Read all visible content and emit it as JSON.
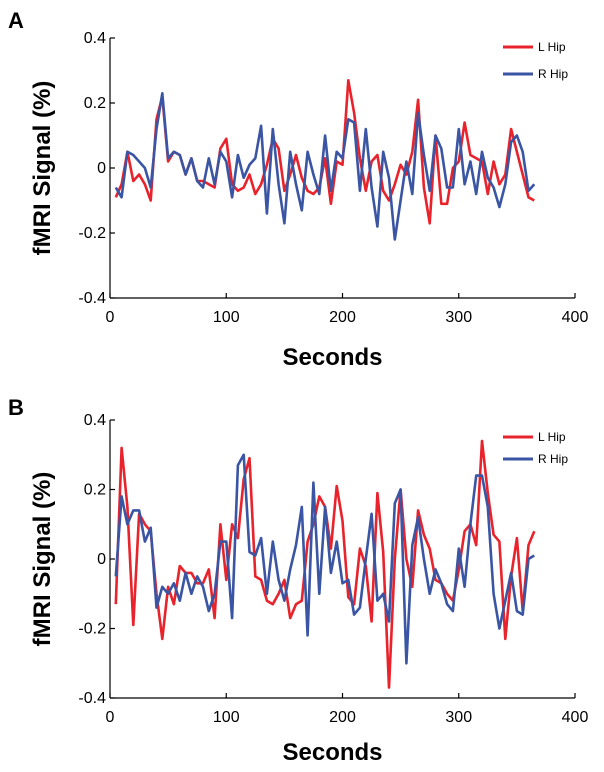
{
  "chart_data": [
    {
      "type": "line",
      "panel": "A",
      "xlabel": "Seconds",
      "ylabel": "fMRI Signal (%)",
      "xlim": [
        0,
        400
      ],
      "ylim": [
        -0.4,
        0.4
      ],
      "xticks": [
        0,
        100,
        200,
        300,
        400
      ],
      "yticks": [
        -0.4,
        -0.2,
        0,
        0.2,
        0.4
      ],
      "ytick_labels": [
        "-0.4",
        "-0.2",
        "0",
        "0.2",
        "0.4"
      ],
      "grid": false,
      "legend": "top-right",
      "series": [
        {
          "name": "L Hip",
          "color": "#e8232b",
          "x": [
            5,
            10,
            15,
            20,
            25,
            30,
            35,
            40,
            45,
            50,
            55,
            60,
            65,
            70,
            75,
            80,
            85,
            90,
            95,
            100,
            105,
            110,
            115,
            120,
            125,
            130,
            135,
            140,
            145,
            150,
            155,
            160,
            165,
            170,
            175,
            180,
            185,
            190,
            195,
            200,
            205,
            210,
            215,
            220,
            225,
            230,
            235,
            240,
            245,
            250,
            255,
            260,
            265,
            270,
            275,
            280,
            285,
            290,
            295,
            300,
            305,
            310,
            315,
            320,
            325,
            330,
            335,
            340,
            345,
            350,
            355,
            360,
            365
          ],
          "y": [
            -0.09,
            -0.05,
            0.05,
            -0.04,
            -0.02,
            -0.05,
            -0.1,
            0.15,
            0.22,
            0.02,
            0.05,
            0.04,
            -0.02,
            0.03,
            -0.04,
            -0.04,
            -0.05,
            -0.06,
            0.06,
            0.09,
            -0.05,
            -0.07,
            -0.06,
            -0.02,
            -0.08,
            -0.05,
            0.01,
            0.09,
            0.06,
            -0.07,
            -0.02,
            0.04,
            -0.03,
            -0.07,
            -0.08,
            -0.06,
            0.03,
            -0.11,
            0.02,
            0.01,
            0.27,
            0.17,
            0.03,
            -0.07,
            0.02,
            0.04,
            -0.07,
            -0.1,
            -0.05,
            0.01,
            -0.02,
            0.05,
            0.21,
            -0.06,
            -0.17,
            0.1,
            -0.11,
            -0.11,
            0.0,
            0.02,
            0.14,
            0.04,
            0.03,
            0.02,
            -0.08,
            0.02,
            -0.05,
            -0.02,
            0.12,
            0.05,
            -0.02,
            -0.09,
            -0.1
          ]
        },
        {
          "name": "R Hip",
          "color": "#3a55a4",
          "x": [
            5,
            10,
            15,
            20,
            25,
            30,
            35,
            40,
            45,
            50,
            55,
            60,
            65,
            70,
            75,
            80,
            85,
            90,
            95,
            100,
            105,
            110,
            115,
            120,
            125,
            130,
            135,
            140,
            145,
            150,
            155,
            160,
            165,
            170,
            175,
            180,
            185,
            190,
            195,
            200,
            205,
            210,
            215,
            220,
            225,
            230,
            235,
            240,
            245,
            250,
            255,
            260,
            265,
            270,
            275,
            280,
            285,
            290,
            295,
            300,
            305,
            310,
            315,
            320,
            325,
            330,
            335,
            340,
            345,
            350,
            355,
            360,
            365
          ],
          "y": [
            -0.06,
            -0.09,
            0.05,
            0.04,
            0.02,
            0.0,
            -0.06,
            0.12,
            0.23,
            0.03,
            0.05,
            0.04,
            -0.02,
            0.03,
            -0.04,
            -0.06,
            0.03,
            -0.05,
            0.05,
            0.02,
            -0.09,
            0.04,
            -0.03,
            0.01,
            0.03,
            0.13,
            -0.14,
            0.12,
            -0.05,
            -0.17,
            0.05,
            -0.05,
            -0.13,
            0.05,
            -0.02,
            -0.08,
            0.1,
            -0.07,
            0.05,
            0.03,
            0.15,
            0.14,
            -0.07,
            0.12,
            -0.06,
            -0.18,
            0.05,
            -0.03,
            -0.22,
            -0.1,
            0.02,
            -0.08,
            0.17,
            0.04,
            -0.07,
            0.1,
            0.06,
            -0.06,
            -0.06,
            0.12,
            -0.05,
            0.02,
            -0.08,
            0.05,
            -0.03,
            -0.06,
            -0.12,
            -0.05,
            0.08,
            0.1,
            0.05,
            -0.07,
            -0.05
          ]
        }
      ]
    },
    {
      "type": "line",
      "panel": "B",
      "xlabel": "Seconds",
      "ylabel": "fMRI Signal (%)",
      "xlim": [
        0,
        400
      ],
      "ylim": [
        -0.4,
        0.4
      ],
      "xticks": [
        0,
        100,
        200,
        300,
        400
      ],
      "yticks": [
        -0.4,
        -0.2,
        0,
        0.2,
        0.4
      ],
      "ytick_labels": [
        "-0.4",
        "-0.2",
        "0",
        "0.2",
        "0.4"
      ],
      "grid": false,
      "legend": "top-right",
      "series": [
        {
          "name": "L Hip",
          "color": "#e8232b",
          "x": [
            5,
            10,
            15,
            20,
            25,
            30,
            35,
            40,
            45,
            50,
            55,
            60,
            65,
            70,
            75,
            80,
            85,
            90,
            95,
            100,
            105,
            110,
            115,
            120,
            125,
            130,
            135,
            140,
            145,
            150,
            155,
            160,
            165,
            170,
            175,
            180,
            185,
            190,
            195,
            200,
            205,
            210,
            215,
            220,
            225,
            230,
            235,
            240,
            245,
            250,
            255,
            260,
            265,
            270,
            275,
            280,
            285,
            290,
            295,
            300,
            305,
            310,
            315,
            320,
            325,
            330,
            335,
            340,
            345,
            350,
            355,
            360,
            365
          ],
          "y": [
            -0.13,
            0.32,
            0.15,
            -0.19,
            0.13,
            0.1,
            0.08,
            -0.1,
            -0.23,
            -0.08,
            -0.13,
            -0.02,
            -0.04,
            -0.04,
            -0.07,
            -0.07,
            -0.03,
            -0.17,
            0.1,
            -0.06,
            0.1,
            0.06,
            0.23,
            0.29,
            -0.05,
            -0.06,
            -0.12,
            -0.13,
            -0.1,
            -0.06,
            -0.17,
            -0.13,
            -0.12,
            0.05,
            0.1,
            0.18,
            0.15,
            0.03,
            0.21,
            0.11,
            -0.11,
            -0.13,
            0.03,
            -0.02,
            -0.18,
            0.19,
            0.02,
            -0.37,
            0.0,
            0.2,
            0.0,
            -0.08,
            0.14,
            0.07,
            0.03,
            -0.06,
            -0.07,
            -0.1,
            -0.12,
            -0.03,
            0.08,
            0.1,
            0.04,
            0.34,
            0.19,
            0.07,
            0.05,
            -0.23,
            -0.05,
            0.06,
            -0.15,
            0.04,
            0.08
          ]
        },
        {
          "name": "R Hip",
          "color": "#3a55a4",
          "x": [
            5,
            10,
            15,
            20,
            25,
            30,
            35,
            40,
            45,
            50,
            55,
            60,
            65,
            70,
            75,
            80,
            85,
            90,
            95,
            100,
            105,
            110,
            115,
            120,
            125,
            130,
            135,
            140,
            145,
            150,
            155,
            160,
            165,
            170,
            175,
            180,
            185,
            190,
            195,
            200,
            205,
            210,
            215,
            220,
            225,
            230,
            235,
            240,
            245,
            250,
            255,
            260,
            265,
            270,
            275,
            280,
            285,
            290,
            295,
            300,
            305,
            310,
            315,
            320,
            325,
            330,
            335,
            340,
            345,
            350,
            355,
            360,
            365
          ],
          "y": [
            -0.05,
            0.18,
            0.1,
            0.14,
            0.14,
            0.05,
            0.09,
            -0.14,
            -0.08,
            -0.1,
            -0.07,
            -0.12,
            -0.04,
            -0.1,
            -0.05,
            -0.08,
            -0.15,
            -0.1,
            0.05,
            0.05,
            -0.17,
            0.27,
            0.3,
            0.02,
            0.01,
            0.06,
            -0.1,
            0.05,
            -0.06,
            -0.12,
            -0.03,
            0.04,
            0.15,
            -0.22,
            0.22,
            -0.1,
            0.15,
            -0.04,
            0.05,
            -0.07,
            -0.06,
            -0.16,
            -0.14,
            0.0,
            0.13,
            -0.12,
            -0.1,
            -0.18,
            0.16,
            0.2,
            -0.3,
            0.04,
            0.12,
            0.0,
            -0.1,
            -0.03,
            -0.07,
            -0.13,
            -0.15,
            0.03,
            -0.08,
            0.1,
            0.24,
            0.24,
            0.15,
            -0.1,
            -0.2,
            -0.12,
            -0.04,
            -0.15,
            -0.16,
            0.0,
            0.01
          ]
        }
      ]
    }
  ]
}
